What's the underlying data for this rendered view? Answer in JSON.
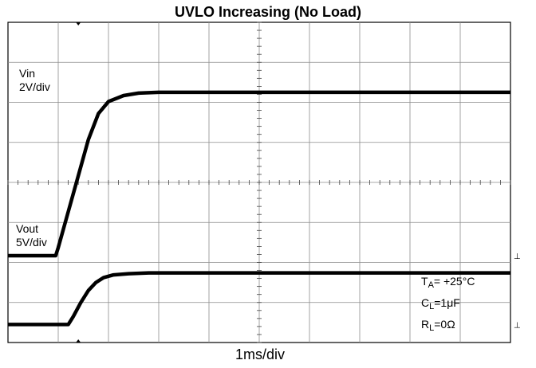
{
  "chart_data": {
    "type": "line",
    "title": "UVLO Increasing (No Load)",
    "xlabel": "1ms/div",
    "x_divisions": 10,
    "y_divisions": 8,
    "series": [
      {
        "name": "Vin",
        "scale": "2V/div",
        "x": [
          0,
          0.95,
          1.0,
          1.2,
          1.4,
          1.6,
          1.8,
          2.0,
          2.3,
          2.6,
          3.0,
          10
        ],
        "y": [
          0,
          0,
          0.2,
          1.1,
          2.0,
          2.9,
          3.55,
          3.85,
          4.0,
          4.06,
          4.08,
          4.08
        ]
      },
      {
        "name": "Vout",
        "scale": "5V/div",
        "x": [
          0,
          1.2,
          1.3,
          1.45,
          1.6,
          1.75,
          1.9,
          2.1,
          2.4,
          2.8,
          10
        ],
        "y": [
          0,
          0,
          0.2,
          0.55,
          0.85,
          1.05,
          1.17,
          1.24,
          1.27,
          1.29,
          1.29
        ]
      }
    ],
    "annotations": {
      "vin_label": "Vin",
      "vin_scale": "2V/div",
      "vout_label": "Vout",
      "vout_scale": "5V/div",
      "ta_main": "T",
      "ta_sub": "A",
      "ta_val": "= +25°C",
      "cl_main": "C",
      "cl_sub": "L",
      "cl_val": "=1μF",
      "rl_main": "R",
      "rl_sub": "L",
      "rl_val": "=0Ω"
    },
    "grid": true
  }
}
